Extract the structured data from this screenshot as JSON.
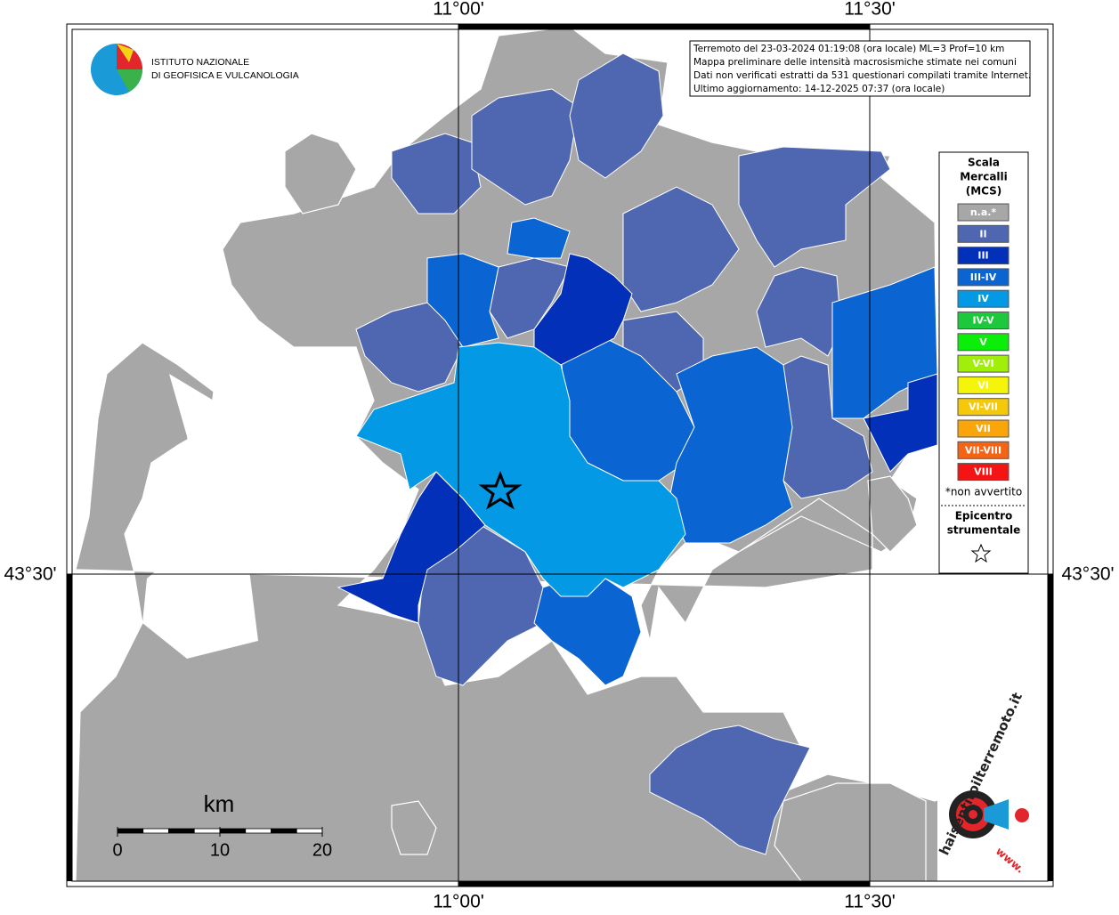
{
  "axes": {
    "top": [
      "11°00'",
      "11°30'"
    ],
    "bottom": [
      "11°00'",
      "11°30'"
    ],
    "left": [
      "43°30'"
    ],
    "right": [
      "43°30'"
    ]
  },
  "logo": {
    "line1": "ISTITUTO NAZIONALE",
    "line2": "DI GEOFISICA E VULCANOLOGIA"
  },
  "info": [
    "Terremoto del 23-03-2024 01:19:08 (ora locale) ML=3 Prof=10 km",
    "Mappa preliminare delle intensità macrosismiche stimate nei comuni",
    "Dati non verificati estratti da 531 questionari compilati tramite Internet.",
    "Ultimo aggiornamento: 14-12-2025 07:37 (ora locale)"
  ],
  "legend": {
    "title": [
      "Scala",
      "Mercalli",
      "(MCS)"
    ],
    "items": [
      {
        "label": "n.a.*",
        "color": "#a7a7a7"
      },
      {
        "label": "II",
        "color": "#4f67b0"
      },
      {
        "label": "III",
        "color": "#0330b8"
      },
      {
        "label": "III-IV",
        "color": "#0a64d2"
      },
      {
        "label": "IV",
        "color": "#0399e5"
      },
      {
        "label": "IV-V",
        "color": "#1ec83c"
      },
      {
        "label": "V",
        "color": "#0aee0a"
      },
      {
        "label": "V-VI",
        "color": "#a0ee0a"
      },
      {
        "label": "VI",
        "color": "#f5f50a"
      },
      {
        "label": "VI-VII",
        "color": "#f5c80a"
      },
      {
        "label": "VII",
        "color": "#faa50a"
      },
      {
        "label": "VII-VIII",
        "color": "#f56414"
      },
      {
        "label": "VIII",
        "color": "#f51414"
      }
    ],
    "note": "*non avvertito",
    "epicenter": [
      "Epicentro",
      "strumentale"
    ]
  },
  "scale_bar": {
    "unit": "km",
    "ticks": [
      0,
      10,
      20
    ]
  },
  "watermark": {
    "site": "haisentitoilterremoto.it",
    "www": "www."
  }
}
